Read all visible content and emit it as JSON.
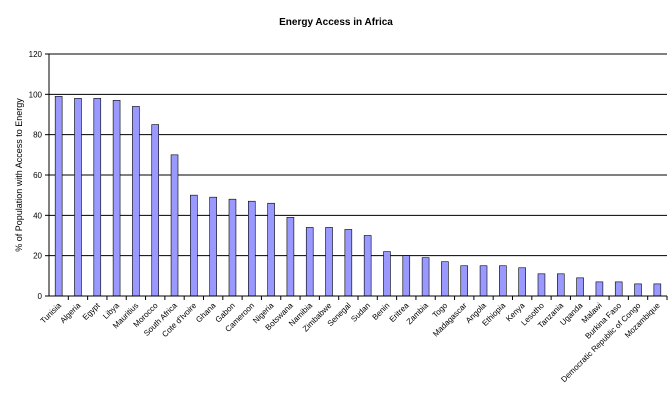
{
  "chart_data": {
    "type": "bar",
    "title": "Energy Access in Africa",
    "xlabel": "",
    "ylabel": "% of Population with Access to Energy",
    "ylim": [
      0,
      120
    ],
    "yticks": [
      0,
      20,
      40,
      60,
      80,
      100,
      120
    ],
    "grid": true,
    "bar_color": "#9999ff",
    "categories": [
      "Tunisia",
      "Algeria",
      "Egypt",
      "Libya",
      "Mauritius",
      "Morocco",
      "South Africa",
      "Cote d'Ivoire",
      "Ghana",
      "Gabon",
      "Cameroon",
      "Nigeria",
      "Botswana",
      "Namibia",
      "Zimbabwe",
      "Senegal",
      "Sudan",
      "Benin",
      "Eritrea",
      "Zambia",
      "Togo",
      "Madagascar",
      "Angola",
      "Ethiopia",
      "Kenya",
      "Lesotho",
      "Tanzania",
      "Uganda",
      "Malawi",
      "Burkina Faso",
      "Democratic Republic of Congo",
      "Mozambique"
    ],
    "values": [
      99,
      98,
      98,
      97,
      94,
      85,
      70,
      50,
      49,
      48,
      47,
      46,
      39,
      34,
      34,
      33,
      30,
      22,
      20,
      19,
      17,
      15,
      15,
      15,
      14,
      11,
      11,
      9,
      7,
      7,
      6,
      6
    ]
  }
}
